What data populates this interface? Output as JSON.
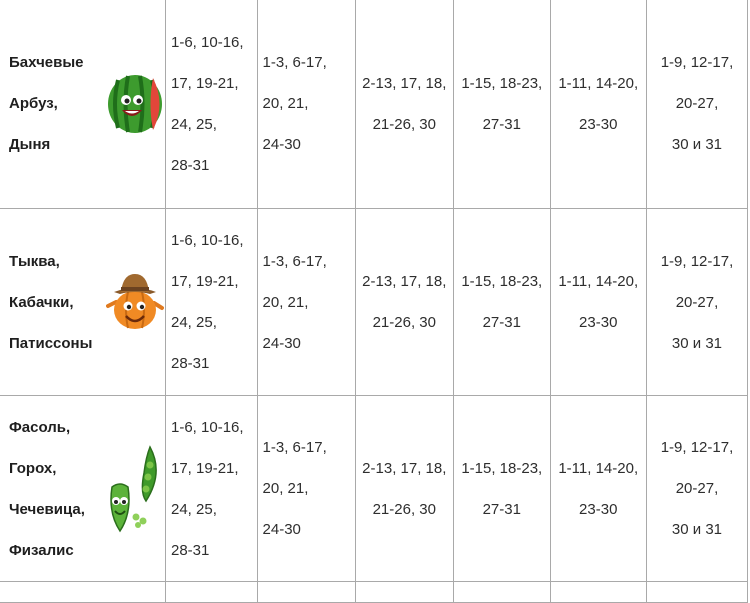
{
  "rows": [
    {
      "crops": [
        "Бахчевые",
        "Арбуз,",
        "Дыня"
      ],
      "icon": "watermelon-icon",
      "cells": [
        [
          "1-6, 10-16,",
          "17, 19-21,",
          "24, 25,",
          "28-31"
        ],
        [
          "1-3, 6-17,",
          "20, 21,",
          "24-30"
        ],
        [
          "2-13, 17, 18,",
          "21-26, 30"
        ],
        [
          "1-15, 18-23,",
          "27-31"
        ],
        [
          "1-11, 14-20,",
          "23-30"
        ],
        [
          "1-9, 12-17,",
          "20-27,",
          "30 и 31"
        ]
      ]
    },
    {
      "crops": [
        "Тыква,",
        "Кабачки,",
        "Патиссоны"
      ],
      "icon": "pumpkin-icon",
      "cells": [
        [
          "1-6, 10-16,",
          "17, 19-21,",
          "24, 25,",
          "28-31"
        ],
        [
          "1-3, 6-17,",
          "20, 21,",
          "24-30"
        ],
        [
          "2-13, 17, 18,",
          "21-26, 30"
        ],
        [
          "1-15, 18-23,",
          "27-31"
        ],
        [
          "1-11, 14-20,",
          "23-30"
        ],
        [
          "1-9, 12-17,",
          "20-27,",
          "30 и 31"
        ]
      ]
    },
    {
      "crops": [
        "Фасоль,",
        "Горох,",
        "Чечевица,",
        "Физалис"
      ],
      "icon": "pea-pod-icon",
      "cells": [
        [
          "1-6, 10-16,",
          "17, 19-21,",
          "24, 25,",
          "28-31"
        ],
        [
          "1-3, 6-17,",
          "20, 21,",
          "24-30"
        ],
        [
          "2-13, 17, 18,",
          "21-26, 30"
        ],
        [
          "1-15, 18-23,",
          "27-31"
        ],
        [
          "1-11, 14-20,",
          "23-30"
        ],
        [
          "1-9, 12-17,",
          "20-27,",
          "30 и 31"
        ]
      ]
    }
  ],
  "colors": {
    "border": "#a9a9a9",
    "text": "#2e2e2e"
  }
}
